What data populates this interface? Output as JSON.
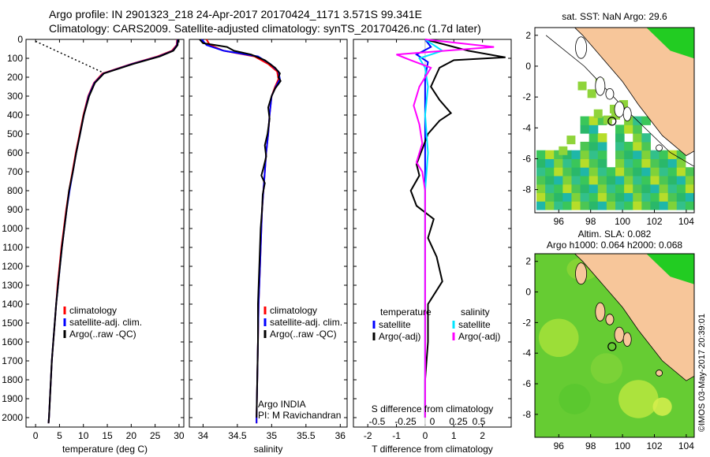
{
  "title_line1": "Argo profile: IN 2901323_218 24-Apr-2017 20170424_1171 3.571S 99.341E",
  "title_line2": "Climatology: CARS2009. Satellite-adjusted climatology: synTS_20170426.nc (1.7d later)",
  "colors": {
    "climatology": "#ff0000",
    "satellite": "#0000ff",
    "argo": "#000000",
    "sat_salinity": "#00e5ff",
    "argo_salinity": "#ff00ff",
    "land": "#f7c69a"
  },
  "chart_data": [
    {
      "type": "line",
      "name": "temperature_profile",
      "xlabel": "temperature (deg C)",
      "xlim": [
        -2,
        31
      ],
      "xticks": [
        0,
        5,
        10,
        15,
        20,
        25,
        30
      ],
      "ylim": [
        0,
        2050
      ],
      "yticks": [
        0,
        100,
        200,
        300,
        400,
        500,
        600,
        700,
        800,
        900,
        1000,
        1100,
        1200,
        1300,
        1400,
        1500,
        1600,
        1700,
        1800,
        1900,
        2000
      ],
      "legend": [
        "climatology",
        "satellite-adj. clim.",
        "Argo(..raw -QC)"
      ],
      "series": [
        {
          "name": "climatology",
          "color": "red",
          "points": [
            [
              29.6,
              0
            ],
            [
              29.5,
              30
            ],
            [
              28.5,
              60
            ],
            [
              25.5,
              90
            ],
            [
              20.0,
              130
            ],
            [
              14.0,
              180
            ],
            [
              12.2,
              230
            ],
            [
              11.0,
              300
            ],
            [
              10.0,
              400
            ],
            [
              9.2,
              500
            ],
            [
              8.4,
              600
            ],
            [
              7.7,
              700
            ],
            [
              7.0,
              800
            ],
            [
              6.4,
              900
            ],
            [
              5.9,
              1000
            ],
            [
              5.4,
              1100
            ],
            [
              5.0,
              1200
            ],
            [
              4.6,
              1300
            ],
            [
              4.3,
              1400
            ],
            [
              4.0,
              1500
            ],
            [
              3.7,
              1600
            ],
            [
              3.4,
              1700
            ],
            [
              3.2,
              1800
            ],
            [
              3.0,
              1900
            ],
            [
              2.8,
              2000
            ],
            [
              2.7,
              2030
            ]
          ]
        },
        {
          "name": "satellite-adj. clim.",
          "color": "blue",
          "points": [
            [
              29.7,
              0
            ],
            [
              29.6,
              30
            ],
            [
              28.7,
              60
            ],
            [
              25.8,
              90
            ],
            [
              20.2,
              130
            ],
            [
              14.2,
              180
            ],
            [
              12.3,
              230
            ],
            [
              11.1,
              300
            ],
            [
              10.1,
              400
            ],
            [
              9.3,
              500
            ],
            [
              8.5,
              600
            ],
            [
              7.8,
              700
            ],
            [
              7.1,
              800
            ],
            [
              6.5,
              900
            ],
            [
              6.0,
              1000
            ],
            [
              5.5,
              1100
            ],
            [
              5.1,
              1200
            ],
            [
              4.7,
              1300
            ],
            [
              4.3,
              1400
            ],
            [
              4.0,
              1500
            ],
            [
              3.7,
              1600
            ],
            [
              3.4,
              1700
            ],
            [
              3.2,
              1800
            ],
            [
              3.0,
              1900
            ],
            [
              2.8,
              2000
            ],
            [
              2.7,
              2030
            ]
          ]
        },
        {
          "name": "Argo(..raw -QC)",
          "color": "black",
          "points": [
            [
              29.8,
              0
            ],
            [
              29.7,
              30
            ],
            [
              28.8,
              60
            ],
            [
              26.0,
              90
            ],
            [
              20.4,
              130
            ],
            [
              14.3,
              180
            ],
            [
              12.4,
              230
            ],
            [
              11.2,
              300
            ],
            [
              10.1,
              400
            ],
            [
              9.3,
              500
            ],
            [
              8.5,
              600
            ],
            [
              7.8,
              700
            ],
            [
              7.0,
              800
            ],
            [
              6.5,
              900
            ],
            [
              6.0,
              1000
            ],
            [
              5.5,
              1100
            ],
            [
              5.1,
              1200
            ],
            [
              4.7,
              1300
            ],
            [
              4.3,
              1400
            ],
            [
              4.0,
              1500
            ],
            [
              3.7,
              1600
            ],
            [
              3.4,
              1700
            ],
            [
              3.2,
              1800
            ],
            [
              3.0,
              1900
            ],
            [
              2.8,
              2000
            ],
            [
              2.7,
              2030
            ]
          ]
        },
        {
          "name": "Argo raw (dotted)",
          "color": "black",
          "dotted": true,
          "points": [
            [
              0,
              10
            ],
            [
              14.5,
              180
            ]
          ]
        }
      ]
    },
    {
      "type": "line",
      "name": "salinity_profile",
      "xlabel": "salinity",
      "xlim": [
        33.8,
        36.1
      ],
      "xticks": [
        34,
        34.5,
        35,
        35.5,
        36
      ],
      "ylim": [
        0,
        2050
      ],
      "legend": [
        "climatology",
        "satellite-adj. clim.",
        "Argo(..raw -QC)"
      ],
      "annotation": [
        "Argo INDIA",
        "PI: M Ravichandran"
      ],
      "series": [
        {
          "name": "climatology",
          "color": "red",
          "points": [
            [
              34.05,
              0
            ],
            [
              34.1,
              30
            ],
            [
              34.3,
              60
            ],
            [
              34.75,
              90
            ],
            [
              34.95,
              130
            ],
            [
              35.08,
              170
            ],
            [
              35.1,
              210
            ],
            [
              35.05,
              250
            ],
            [
              35.0,
              300
            ],
            [
              34.97,
              400
            ],
            [
              34.95,
              500
            ],
            [
              34.92,
              600
            ],
            [
              34.9,
              700
            ],
            [
              34.88,
              800
            ],
            [
              34.86,
              900
            ],
            [
              34.85,
              1000
            ],
            [
              34.83,
              1200
            ],
            [
              34.81,
              1400
            ],
            [
              34.8,
              1600
            ],
            [
              34.79,
              1800
            ],
            [
              34.78,
              2000
            ],
            [
              34.78,
              2030
            ]
          ]
        },
        {
          "name": "satellite-adj. clim.",
          "color": "blue",
          "points": [
            [
              33.98,
              0
            ],
            [
              34.05,
              30
            ],
            [
              34.3,
              60
            ],
            [
              34.8,
              90
            ],
            [
              34.98,
              130
            ],
            [
              35.1,
              170
            ],
            [
              35.12,
              210
            ],
            [
              35.06,
              250
            ],
            [
              35.0,
              300
            ],
            [
              34.97,
              400
            ],
            [
              34.95,
              500
            ],
            [
              34.92,
              600
            ],
            [
              34.9,
              700
            ],
            [
              34.88,
              800
            ],
            [
              34.86,
              900
            ],
            [
              34.85,
              1000
            ],
            [
              34.83,
              1200
            ],
            [
              34.81,
              1400
            ],
            [
              34.8,
              1600
            ],
            [
              34.79,
              1800
            ],
            [
              34.78,
              2000
            ],
            [
              34.78,
              2030
            ]
          ]
        },
        {
          "name": "Argo(..raw -QC)",
          "color": "black",
          "points": [
            [
              33.95,
              0
            ],
            [
              34.0,
              20
            ],
            [
              34.35,
              40
            ],
            [
              34.45,
              60
            ],
            [
              34.7,
              80
            ],
            [
              34.9,
              110
            ],
            [
              35.05,
              150
            ],
            [
              35.12,
              180
            ],
            [
              35.1,
              200
            ],
            [
              35.13,
              220
            ],
            [
              35.05,
              260
            ],
            [
              35.0,
              300
            ],
            [
              34.95,
              360
            ],
            [
              34.97,
              420
            ],
            [
              34.94,
              500
            ],
            [
              34.9,
              560
            ],
            [
              34.92,
              620
            ],
            [
              34.88,
              680
            ],
            [
              34.85,
              720
            ],
            [
              34.9,
              760
            ],
            [
              34.87,
              820
            ],
            [
              34.86,
              900
            ],
            [
              34.84,
              1000
            ],
            [
              34.82,
              1200
            ],
            [
              34.8,
              1400
            ],
            [
              34.8,
              1600
            ],
            [
              34.79,
              1800
            ],
            [
              34.78,
              2000
            ]
          ]
        }
      ]
    },
    {
      "type": "line",
      "name": "difference_profile",
      "xlabel_bottom": "T difference from climatology",
      "xlabel_top": "S difference from climatology",
      "xlim": [
        -2.5,
        3.0
      ],
      "xticks": [
        -2,
        -1,
        0,
        1,
        2
      ],
      "s_ticks": [
        "-0.5",
        "-0.25",
        "0",
        "0.25",
        "0.5"
      ],
      "ylim": [
        0,
        2050
      ],
      "legend_titles": [
        "temperature",
        "salinity"
      ],
      "legend": [
        "satellite",
        "Argo(-adj)",
        "satellite",
        "Argo(-adj)"
      ],
      "series": [
        {
          "name": "T satellite",
          "color": "blue",
          "points": [
            [
              0,
              0
            ],
            [
              0.2,
              40
            ],
            [
              -0.3,
              80
            ],
            [
              0.1,
              120
            ],
            [
              0,
              200
            ],
            [
              0,
              400
            ],
            [
              0,
              800
            ],
            [
              0,
              1200
            ],
            [
              0,
              1600
            ],
            [
              0,
              2000
            ]
          ]
        },
        {
          "name": "T Argo(-adj)",
          "color": "black",
          "points": [
            [
              0,
              0
            ],
            [
              1.5,
              60
            ],
            [
              2.8,
              95
            ],
            [
              1.0,
              110
            ],
            [
              0.5,
              150
            ],
            [
              0.2,
              250
            ],
            [
              0.5,
              320
            ],
            [
              0.9,
              390
            ],
            [
              0.5,
              430
            ],
            [
              0.1,
              500
            ],
            [
              -0.1,
              580
            ],
            [
              -0.3,
              660
            ],
            [
              -0.2,
              720
            ],
            [
              -0.5,
              800
            ],
            [
              -0.3,
              880
            ],
            [
              0.3,
              950
            ],
            [
              0.1,
              1050
            ],
            [
              0.4,
              1150
            ],
            [
              0.6,
              1280
            ],
            [
              0.1,
              1400
            ],
            [
              0.1,
              1600
            ],
            [
              0.0,
              1800
            ],
            [
              0.0,
              2000
            ]
          ]
        },
        {
          "name": "S satellite",
          "color": "#00e5ff",
          "points": [
            [
              0,
              0
            ],
            [
              0.6,
              60
            ],
            [
              -0.2,
              100
            ],
            [
              0,
              150
            ],
            [
              0.1,
              250
            ],
            [
              0.0,
              400
            ],
            [
              0.1,
              600
            ],
            [
              0.0,
              800
            ],
            [
              0.0,
              1000
            ],
            [
              0.0,
              1400
            ],
            [
              0.0,
              1800
            ],
            [
              0.0,
              2000
            ]
          ]
        },
        {
          "name": "S Argo(-adj)",
          "color": "#ff00ff",
          "points": [
            [
              0,
              0
            ],
            [
              2.4,
              40
            ],
            [
              -1.0,
              80
            ],
            [
              -0.5,
              110
            ],
            [
              0.2,
              150
            ],
            [
              -0.2,
              250
            ],
            [
              -0.4,
              350
            ],
            [
              -0.2,
              450
            ],
            [
              -0.1,
              550
            ],
            [
              -0.3,
              650
            ],
            [
              -0.1,
              700
            ],
            [
              0.0,
              800
            ],
            [
              0.0,
              1000
            ],
            [
              0.0,
              1400
            ],
            [
              0.0,
              1800
            ],
            [
              0.0,
              2000
            ]
          ]
        }
      ]
    },
    {
      "type": "heatmap",
      "name": "sst_map",
      "title": "sat. SST: NaN Argo: 29.6",
      "xlim": [
        94.5,
        104.5
      ],
      "ylim": [
        -9.5,
        2.5
      ],
      "xticks": [
        96,
        98,
        100,
        102,
        104
      ],
      "yticks": [
        2,
        0,
        -2,
        -4,
        -6,
        -8
      ],
      "argo_position": [
        99.341,
        -3.571
      ]
    },
    {
      "type": "heatmap",
      "name": "sla_map",
      "title_lines": [
        "Altim. SLA: 0.082",
        "Argo h1000: 0.064 h2000: 0.068"
      ],
      "xlim": [
        94.5,
        104.5
      ],
      "ylim": [
        -9.5,
        2.5
      ],
      "xticks": [
        96,
        98,
        100,
        102,
        104
      ],
      "yticks": [
        2,
        0,
        -2,
        -4,
        -6,
        -8
      ],
      "argo_position": [
        99.341,
        -3.571
      ]
    }
  ],
  "credit": "©IMOS 03-May-2017 20:39:01"
}
